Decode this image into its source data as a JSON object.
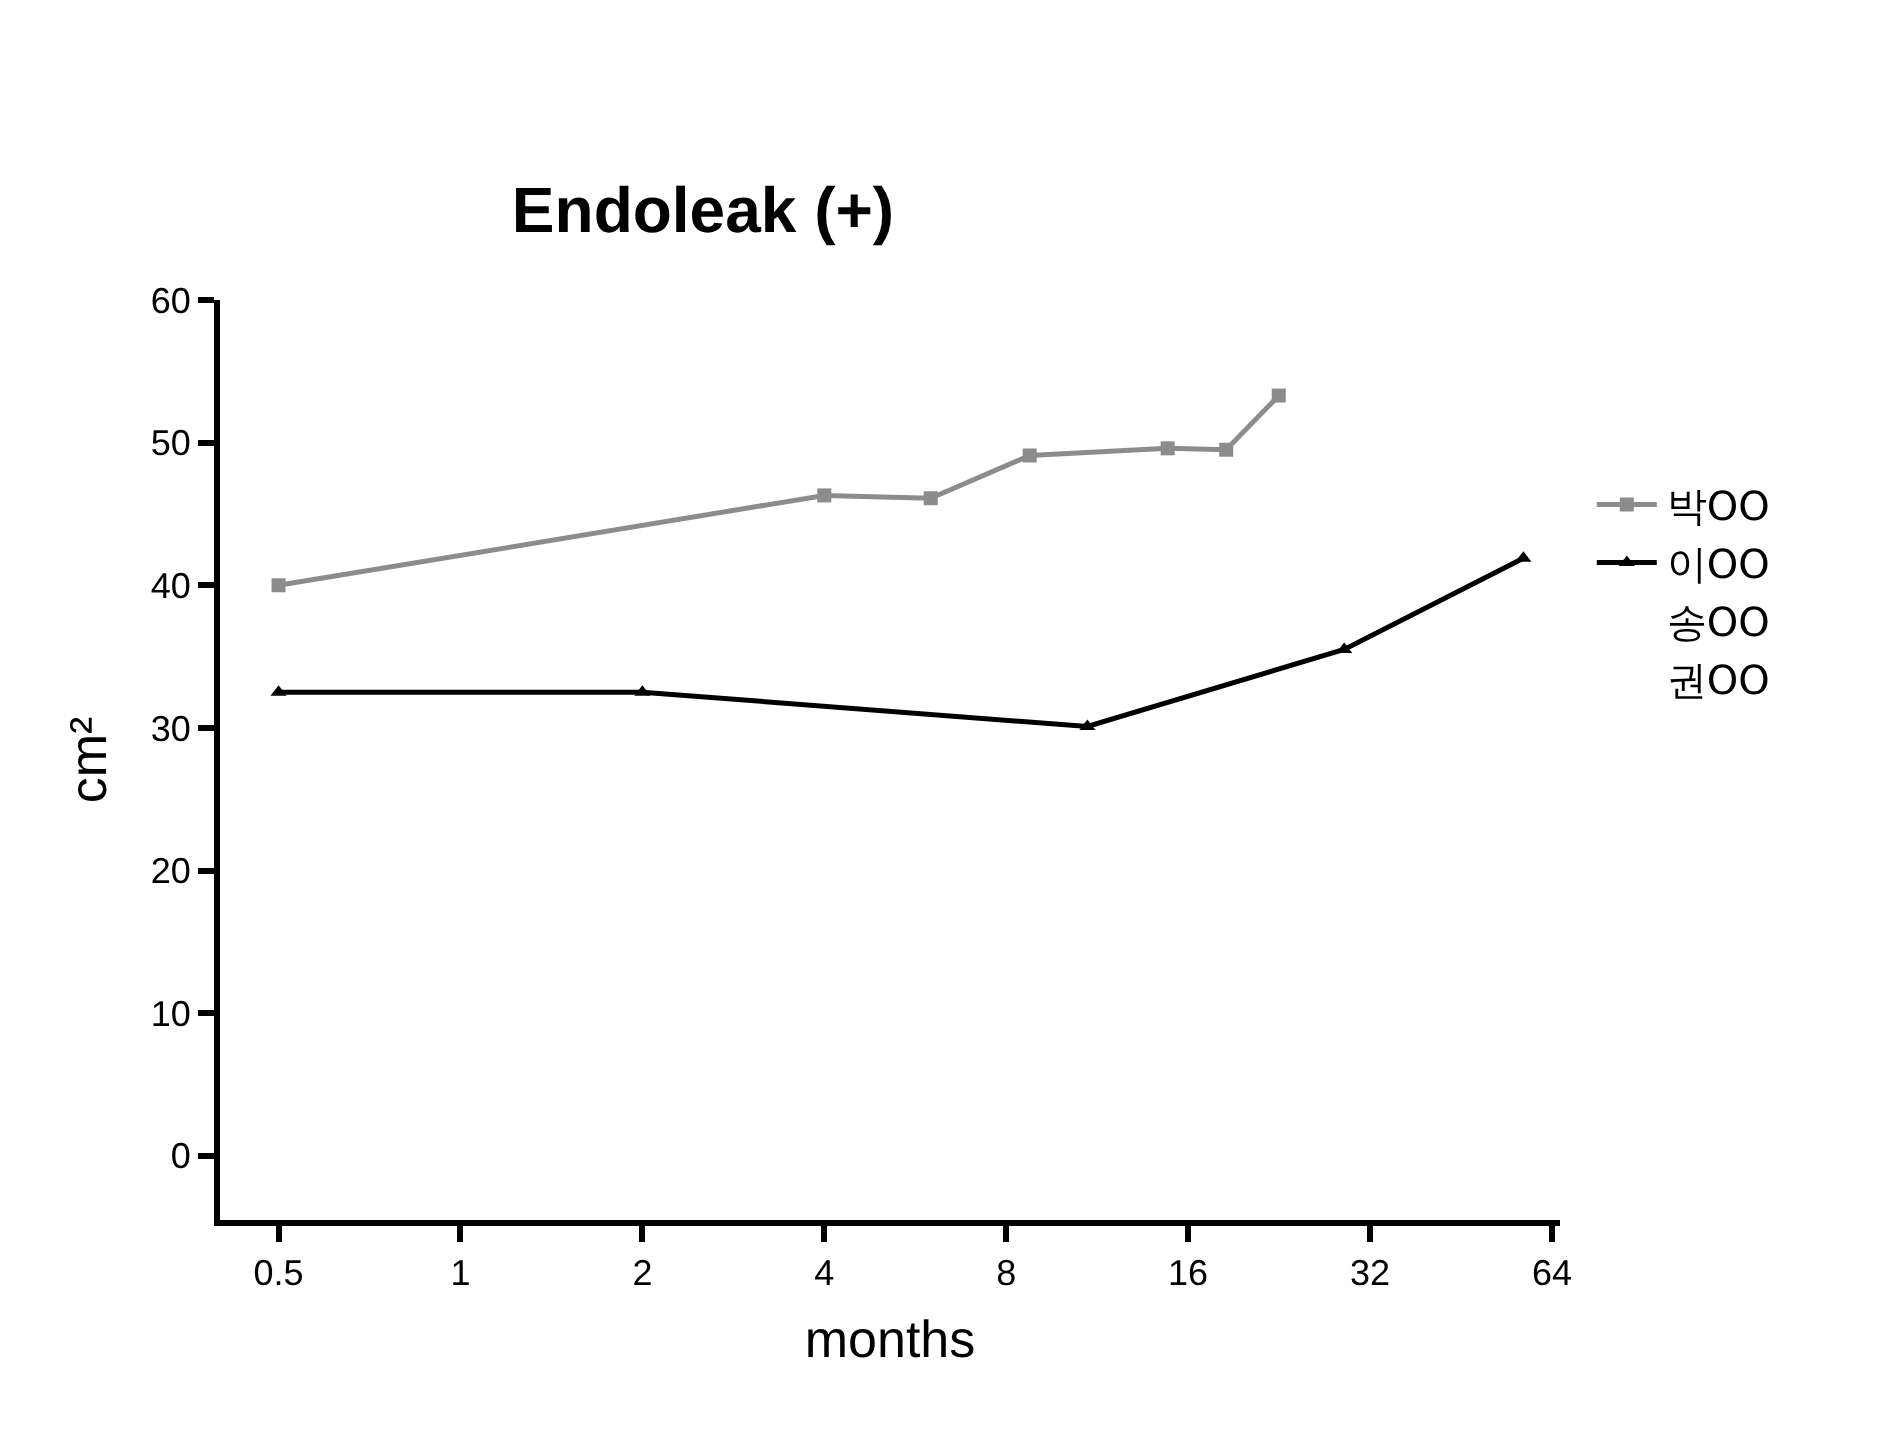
{
  "chart_data": {
    "type": "line",
    "title": "Endoleak (+)",
    "xlabel": "months",
    "ylabel": "cm²",
    "log": "x",
    "xlim": [
      0.4,
      66
    ],
    "xticks": [
      0.5,
      1,
      2,
      4,
      8,
      16,
      32,
      64
    ],
    "ylim": [
      -4.5,
      60
    ],
    "yticks": [
      0,
      10,
      20,
      30,
      40,
      50,
      60
    ],
    "grid": false,
    "legend": "right",
    "series": [
      {
        "name": "박OO",
        "color": "#8c8c8c",
        "marker": "square",
        "x": [
          0.5,
          4,
          6,
          8.75,
          14.8,
          18.5,
          22.6
        ],
        "values": [
          40,
          46.3,
          46.1,
          49.1,
          49.6,
          49.5,
          53.3
        ]
      },
      {
        "name": "이OO",
        "color": "#000000",
        "marker": "triangle",
        "x": [
          0.5,
          2,
          10.9,
          29,
          57.4
        ],
        "values": [
          32.5,
          32.5,
          30.1,
          35.5,
          41.9
        ]
      },
      {
        "name": "송OO",
        "marker": "none"
      },
      {
        "name": "권OO",
        "marker": "none"
      }
    ]
  }
}
